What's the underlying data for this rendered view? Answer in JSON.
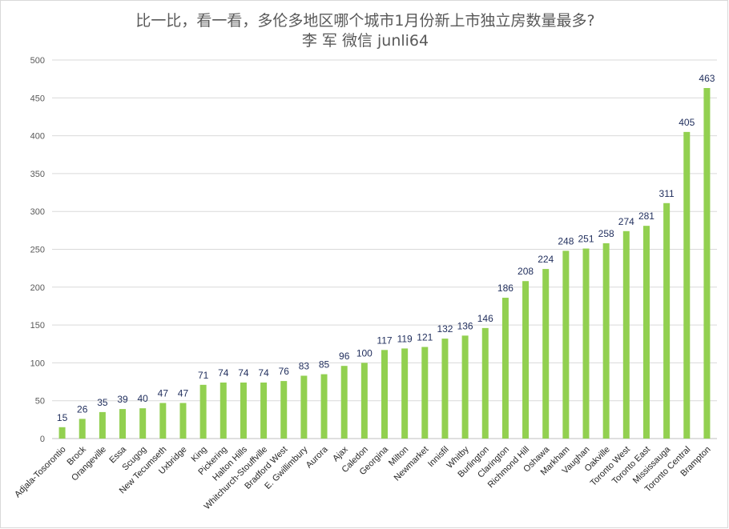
{
  "colors": {
    "bar": "#92d050",
    "grid": "#d9d9d9",
    "axis": "#bfbfbf",
    "label": "#1f2d5c"
  },
  "chart_data": {
    "type": "bar",
    "title": "比一比，看一看，多伦多地区哪个城市1月份新上市独立房数量最多?",
    "subtitle": "李 军  微信  junli64",
    "ylim": [
      0,
      500
    ],
    "yticks": [
      0,
      50,
      100,
      150,
      200,
      250,
      300,
      350,
      400,
      450,
      500
    ],
    "grid": true,
    "categories": [
      "Adjala-Tosorontio",
      "Brock",
      "Orangeville",
      "Essa",
      "Scugog",
      "New Tecumseth",
      "Uxbridge",
      "King",
      "Pickering",
      "Halton Hills",
      "Whitchurch-Stouffville",
      "Bradford West",
      "E. Gwillimbury",
      "Aurora",
      "Ajax",
      "Caledon",
      "Georgina",
      "Milton",
      "Newmarket",
      "Innisfil",
      "Whitby",
      "Burlington",
      "Clarington",
      "Richmond Hill",
      "Oshawa",
      "Markham",
      "Vaughan",
      "Oakville",
      "Toronto West",
      "Toronto East",
      "Mississauga",
      "Toronto Central",
      "Brampton"
    ],
    "values": [
      15,
      26,
      35,
      39,
      40,
      47,
      47,
      71,
      74,
      74,
      74,
      76,
      83,
      85,
      96,
      100,
      117,
      119,
      121,
      132,
      136,
      146,
      186,
      208,
      224,
      248,
      251,
      258,
      274,
      281,
      311,
      405,
      463
    ]
  }
}
